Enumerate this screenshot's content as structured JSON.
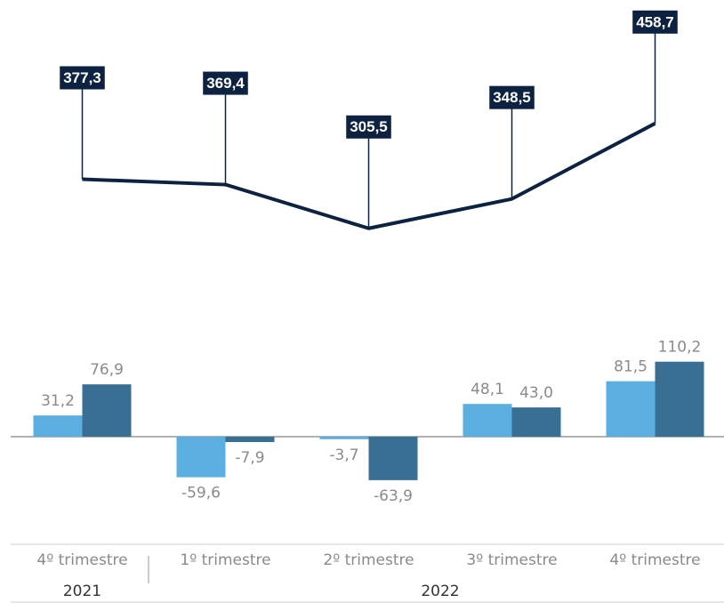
{
  "chart_data": [
    {
      "type": "line",
      "categories": [
        "4º trimestre",
        "1º trimestre",
        "2º trimestre",
        "3º trimestre",
        "4º trimestre"
      ],
      "values": [
        377.3,
        369.4,
        305.5,
        348.5,
        458.7
      ],
      "value_labels": [
        "377,3",
        "369,4",
        "305,5",
        "348,5",
        "458,7"
      ],
      "color": "#0d2240"
    },
    {
      "type": "bar",
      "categories": [
        "4º trimestre",
        "1º trimestre",
        "2º trimestre",
        "3º trimestre",
        "4º trimestre"
      ],
      "series": [
        {
          "color": "#5aafe0",
          "values": [
            31.2,
            -59.6,
            -3.7,
            48.1,
            81.5
          ],
          "value_labels": [
            "31,2",
            "-59,6",
            "-3,7",
            "48,1",
            "81,5"
          ]
        },
        {
          "color": "#3a6f94",
          "values": [
            76.9,
            -7.9,
            -63.9,
            43.0,
            110.2
          ],
          "value_labels": [
            "76,9",
            "-7,9",
            "-63,9",
            "43,0",
            "110,2"
          ]
        }
      ],
      "groups": [
        {
          "label": "2021",
          "categories": [
            "4º trimestre"
          ]
        },
        {
          "label": "2022",
          "categories": [
            "1º trimestre",
            "2º trimestre",
            "3º trimestre",
            "4º trimestre"
          ]
        }
      ]
    }
  ]
}
